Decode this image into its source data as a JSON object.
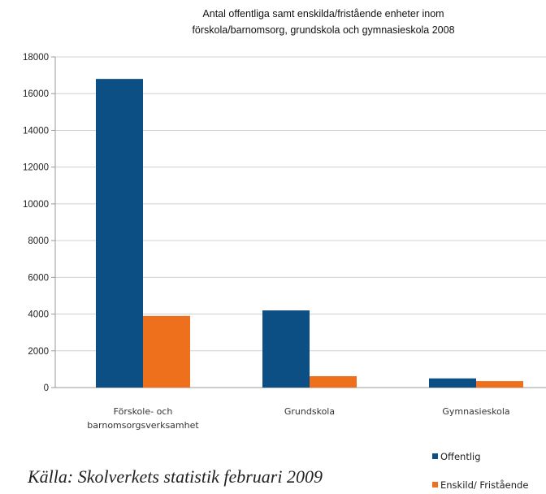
{
  "chart_data": {
    "type": "bar",
    "title": [
      "Antal offentliga samt enskilda/fristående enheter inom",
      "förskola/barnomsorg, grundskola och gymnasieskola 2008"
    ],
    "categories": [
      [
        "Förskole- och",
        "barnomsorgsverksamhet"
      ],
      [
        "Grundskola"
      ],
      [
        "Gymnasieskola"
      ]
    ],
    "series": [
      {
        "name": "Offentlig",
        "color": "#0c4f84",
        "values": [
          16800,
          4200,
          500
        ]
      },
      {
        "name": "Enskild/ Fristående",
        "color": "#ee6f1c",
        "values": [
          3900,
          620,
          350
        ]
      }
    ],
    "yticks": [
      0,
      2000,
      4000,
      6000,
      8000,
      10000,
      12000,
      14000,
      16000,
      18000
    ],
    "ylim": [
      0,
      18000
    ],
    "grid": true,
    "legend_position": "bottom-right"
  },
  "source_note": "Källa: Skolverkets statistik februari 2009"
}
